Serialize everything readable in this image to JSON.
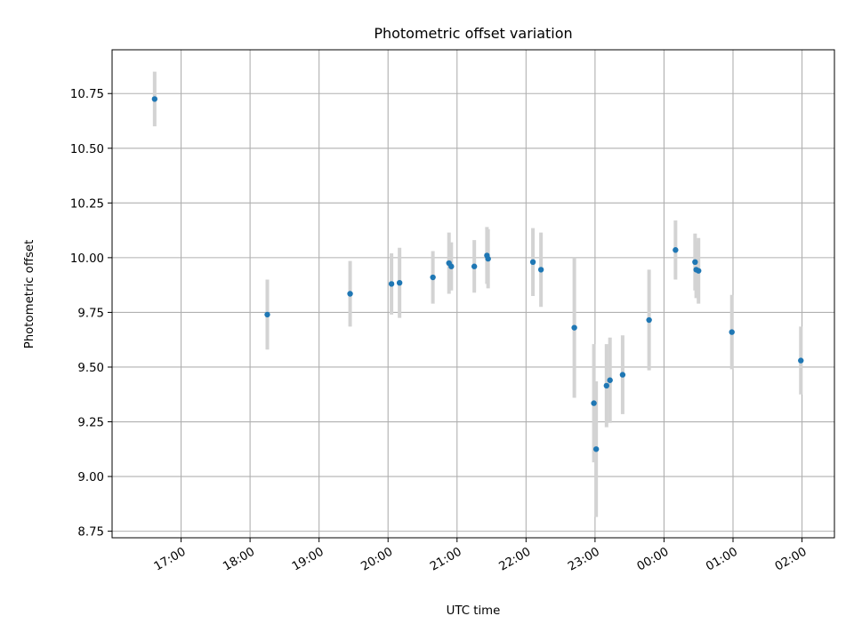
{
  "chart_data": {
    "type": "scatter",
    "title": "Photometric offset variation",
    "xlabel": "UTC time",
    "ylabel": "Photometric offset",
    "x_ticks": [
      "17:00",
      "18:00",
      "19:00",
      "20:00",
      "21:00",
      "22:00",
      "23:00",
      "00:00",
      "01:00",
      "02:00"
    ],
    "x_tick_hours": [
      17,
      18,
      19,
      20,
      21,
      22,
      23,
      24,
      25,
      26
    ],
    "xlim_hours": [
      16.0,
      26.47
    ],
    "y_ticks": [
      "8.75",
      "9.00",
      "9.25",
      "9.50",
      "9.75",
      "10.00",
      "10.25",
      "10.50",
      "10.75"
    ],
    "y_tick_values": [
      8.75,
      9.0,
      9.25,
      9.5,
      9.75,
      10.0,
      10.25,
      10.5,
      10.75
    ],
    "ylim": [
      8.72,
      10.95
    ],
    "grid": true,
    "point_color": "#1f77b4",
    "errorbar_color": "#d3d3d3",
    "series": [
      {
        "x": [
          "16:37",
          "18:15",
          "19:27",
          "20:03",
          "20:10",
          "20:39",
          "20:53",
          "20:55",
          "21:15",
          "21:26",
          "21:27",
          "22:06",
          "22:13",
          "22:42",
          "22:59",
          "23:01",
          "23:10",
          "23:13",
          "23:24",
          "23:47",
          "00:10",
          "00:27",
          "00:28",
          "00:30",
          "00:59",
          "01:59"
        ],
        "y": [
          10.725,
          9.74,
          9.835,
          9.88,
          9.885,
          9.91,
          9.975,
          9.96,
          9.96,
          10.01,
          9.995,
          9.98,
          9.945,
          9.68,
          9.335,
          9.125,
          9.415,
          9.44,
          9.465,
          9.715,
          10.035,
          9.98,
          9.945,
          9.94,
          9.66,
          9.53
        ],
        "err": [
          0.125,
          0.16,
          0.15,
          0.14,
          0.16,
          0.12,
          0.14,
          0.11,
          0.12,
          0.13,
          0.135,
          0.155,
          0.17,
          0.32,
          0.27,
          0.31,
          0.19,
          0.195,
          0.18,
          0.23,
          0.135,
          0.13,
          0.13,
          0.15,
          0.17,
          0.155
        ]
      }
    ]
  }
}
